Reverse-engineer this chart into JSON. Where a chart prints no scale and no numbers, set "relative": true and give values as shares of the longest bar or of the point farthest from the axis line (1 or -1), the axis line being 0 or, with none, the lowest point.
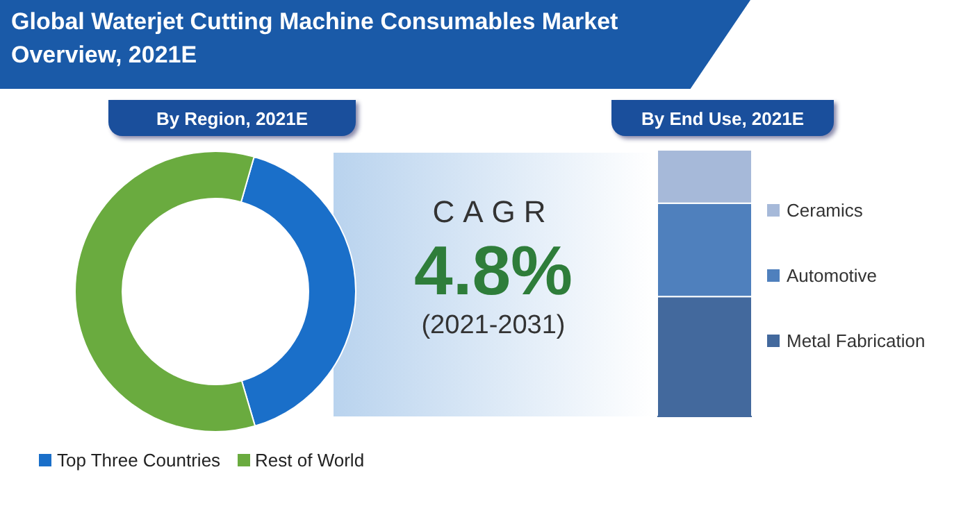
{
  "chart_data": [
    {
      "type": "donut",
      "title": "Global Waterjet Cutting Machine Consumables Market Overview, 2021E",
      "subtitle": "By Region, 2021E",
      "categories": [
        "Top Three Countries",
        "Rest of World"
      ],
      "values": [
        41,
        59
      ],
      "colors": [
        "#1a6fc9",
        "#6aab3f"
      ],
      "legend": "bottom left"
    },
    {
      "type": "other",
      "title": "CAGR",
      "annotations": [
        "4.8%",
        "(2021-2031)"
      ]
    },
    {
      "type": "bar",
      "subtitle": "By End Use, 2021E",
      "categories": [
        null
      ],
      "stacked": true,
      "relative": true,
      "legend": "right",
      "series": [
        {
          "name": "Metal Fabrication",
          "color": "#43699d",
          "values": [
            0.45
          ]
        },
        {
          "name": "Automotive",
          "color": "#4f80bd",
          "values": [
            0.35
          ]
        },
        {
          "name": "Ceramics",
          "color": "#a6b9d9",
          "values": [
            0.2
          ]
        }
      ]
    }
  ]
}
